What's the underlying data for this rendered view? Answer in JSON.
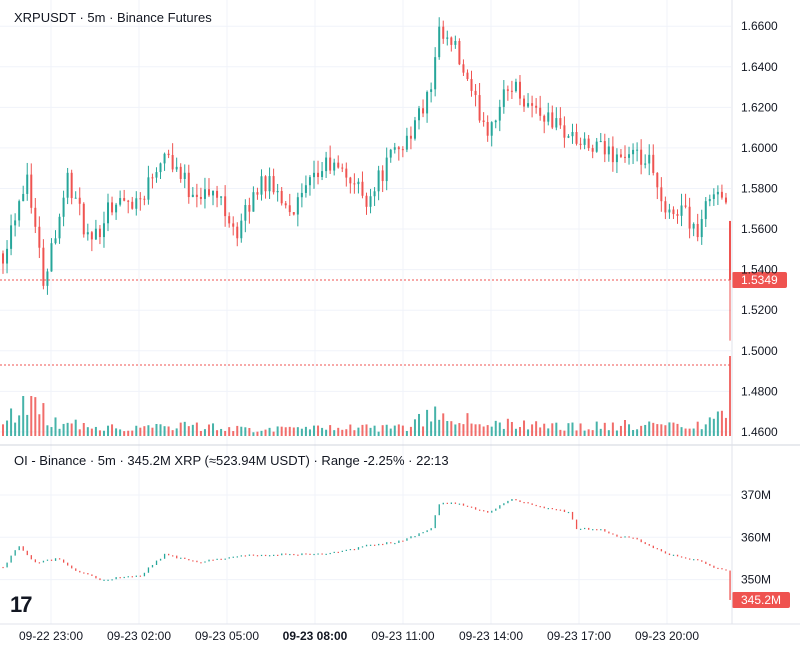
{
  "chart_data": {
    "type": "candlestick",
    "main": {
      "title": "XRPUSDT · 5m · Binance Futures",
      "y_ticks": [
        "1.6600",
        "1.6400",
        "1.6200",
        "1.6000",
        "1.5800",
        "1.5600",
        "1.5400",
        "1.5200",
        "1.5000",
        "1.4800",
        "1.4600"
      ],
      "ylim": [
        1.456,
        1.668
      ],
      "last_price": 1.5349,
      "last_price_label": "1.5349",
      "reference_level": 1.493,
      "colors": {
        "up": "#26a69a",
        "down": "#ef5350",
        "last": "#ef5350"
      },
      "price_waypoints": [
        [
          0,
          1.548
        ],
        [
          6,
          1.588
        ],
        [
          10,
          1.535
        ],
        [
          16,
          1.585
        ],
        [
          22,
          1.55
        ],
        [
          26,
          1.572
        ],
        [
          34,
          1.575
        ],
        [
          40,
          1.6
        ],
        [
          46,
          1.58
        ],
        [
          54,
          1.575
        ],
        [
          58,
          1.558
        ],
        [
          64,
          1.585
        ],
        [
          72,
          1.57
        ],
        [
          80,
          1.592
        ],
        [
          86,
          1.585
        ],
        [
          90,
          1.575
        ],
        [
          96,
          1.595
        ],
        [
          101,
          1.608
        ],
        [
          106,
          1.628
        ],
        [
          108,
          1.655
        ],
        [
          112,
          1.648
        ],
        [
          116,
          1.625
        ],
        [
          120,
          1.61
        ],
        [
          126,
          1.632
        ],
        [
          130,
          1.622
        ],
        [
          138,
          1.61
        ],
        [
          144,
          1.6
        ],
        [
          150,
          1.598
        ],
        [
          156,
          1.595
        ],
        [
          160,
          1.592
        ],
        [
          164,
          1.565
        ],
        [
          168,
          1.572
        ],
        [
          172,
          1.558
        ],
        [
          176,
          1.582
        ],
        [
          179,
          1.573
        ],
        [
          180,
          1.56
        ]
      ],
      "volume_waypoints": [
        [
          0,
          0.25
        ],
        [
          4,
          0.9
        ],
        [
          8,
          1.0
        ],
        [
          12,
          0.4
        ],
        [
          20,
          0.3
        ],
        [
          30,
          0.25
        ],
        [
          44,
          0.3
        ],
        [
          60,
          0.2
        ],
        [
          80,
          0.2
        ],
        [
          100,
          0.25
        ],
        [
          106,
          0.6
        ],
        [
          108,
          0.85
        ],
        [
          112,
          0.5
        ],
        [
          120,
          0.35
        ],
        [
          130,
          0.3
        ],
        [
          140,
          0.25
        ],
        [
          150,
          0.3
        ],
        [
          160,
          0.3
        ],
        [
          170,
          0.25
        ],
        [
          180,
          0.6
        ]
      ]
    },
    "oi": {
      "label": "OI - Binance · 5m · 345.2M XRP (≈523.94M USDT) · Range -2.25% · 22:13",
      "y_ticks": [
        "370M",
        "360M",
        "350M"
      ],
      "ylim": [
        340,
        374
      ],
      "last_value": 345.2,
      "last_value_label": "345.2M",
      "oi_waypoints": [
        [
          0,
          353
        ],
        [
          4,
          358
        ],
        [
          8,
          354
        ],
        [
          14,
          355
        ],
        [
          18,
          352
        ],
        [
          24,
          350
        ],
        [
          34,
          351
        ],
        [
          40,
          356
        ],
        [
          48,
          354
        ],
        [
          54,
          355
        ],
        [
          64,
          356
        ],
        [
          80,
          356
        ],
        [
          86,
          357
        ],
        [
          90,
          358
        ],
        [
          98,
          359
        ],
        [
          106,
          362
        ],
        [
          108,
          368
        ],
        [
          112,
          368
        ],
        [
          120,
          366
        ],
        [
          126,
          369
        ],
        [
          134,
          367
        ],
        [
          140,
          366
        ],
        [
          142,
          362
        ],
        [
          148,
          362
        ],
        [
          152,
          360
        ],
        [
          156,
          360
        ],
        [
          160,
          358
        ],
        [
          164,
          356
        ],
        [
          170,
          355
        ],
        [
          176,
          353
        ],
        [
          179,
          352
        ],
        [
          180,
          345.2
        ]
      ]
    },
    "x_ticks": [
      "09-22 23:00",
      "09-23 02:00",
      "09-23 05:00",
      "09-23 08:00",
      "09-23 11:00",
      "09-23 14:00",
      "09-23 17:00",
      "09-23 20:00"
    ],
    "x_tick_bold": "09-23 08:00",
    "logo_text": "17"
  }
}
